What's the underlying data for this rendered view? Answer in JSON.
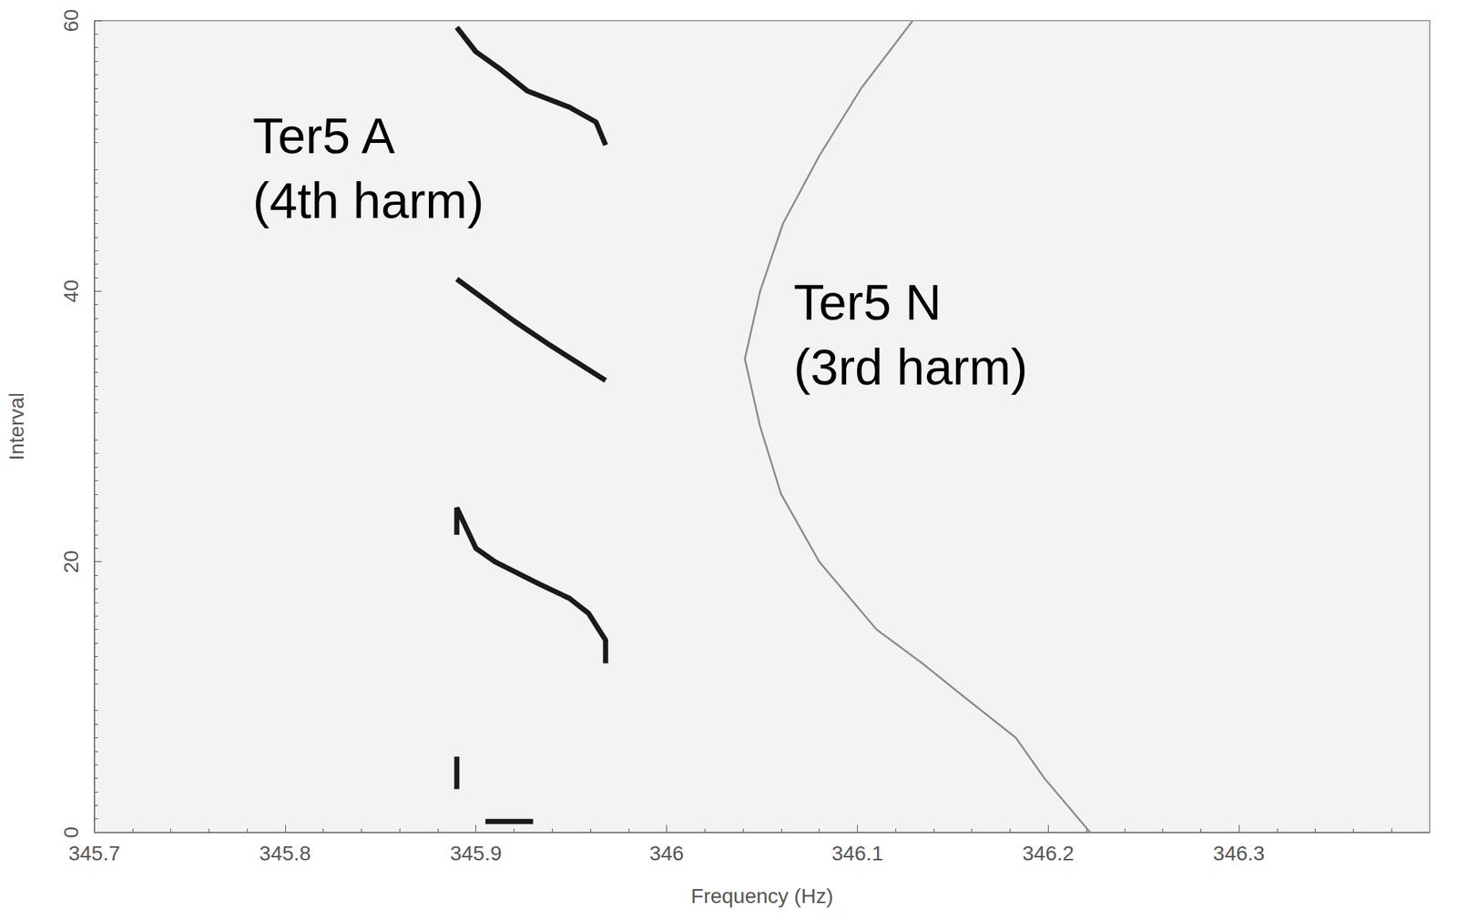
{
  "chart_data": {
    "type": "line",
    "x_label": "Frequency (Hz)",
    "y_label": "Interval",
    "xlim": [
      345.7,
      346.4
    ],
    "xticks": [
      345.7,
      345.8,
      345.9,
      346,
      346.1,
      346.2,
      346.3
    ],
    "ylim": [
      0,
      60
    ],
    "yticks": [
      0,
      20,
      40,
      60
    ],
    "grid": false,
    "legend": false,
    "series": [
      {
        "annotation": [
          "Ter5 A",
          "(4th harm)"
        ],
        "color": "#1a1a1a",
        "line_style": "solid",
        "x": [
          345.905,
          345.93,
          null,
          345.89,
          345.89,
          null,
          345.89,
          345.89,
          345.9,
          345.91,
          345.934,
          345.949,
          345.959,
          345.968,
          345.968,
          null,
          345.89,
          345.92,
          345.939,
          345.968,
          null,
          345.968,
          345.963,
          345.949,
          345.927,
          345.912,
          345.9,
          345.89
        ],
        "values": [
          0.8,
          0.8,
          null,
          3.2,
          5.6,
          null,
          22,
          24,
          21,
          20,
          18.3,
          17.3,
          16.2,
          14.2,
          12.5,
          null,
          40.9,
          37.8,
          36,
          33.4,
          null,
          50.8,
          52.5,
          53.6,
          54.8,
          56.5,
          57.7,
          59.5
        ]
      },
      {
        "annotation": [
          "Ter5 N",
          "(3rd harm)"
        ],
        "color": "#8a8a8a",
        "line_style": "solid",
        "x": [
          346.222,
          346.198,
          346.183,
          346.156,
          346.134,
          346.11,
          346.08,
          346.06,
          346.049,
          346.041,
          346.049,
          346.061,
          346.08,
          346.102,
          346.129
        ],
        "values": [
          0,
          4,
          7,
          10,
          12.5,
          15,
          20,
          25,
          30,
          35,
          40,
          45,
          50,
          55,
          60
        ]
      }
    ]
  }
}
